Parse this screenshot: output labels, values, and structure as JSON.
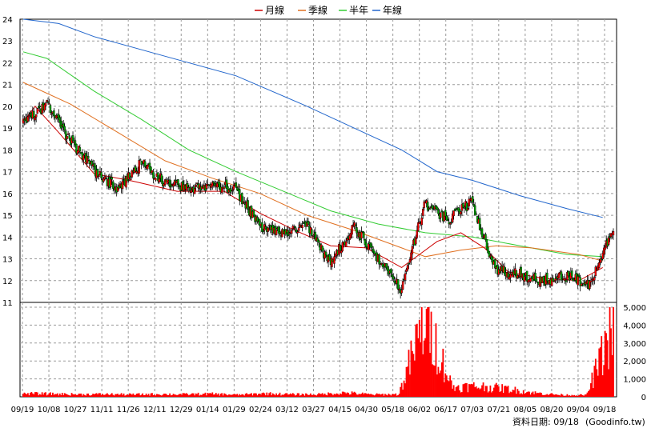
{
  "chart_data": {
    "type": "candlestick",
    "legend": [
      {
        "label": "月線",
        "color": "#cc0000"
      },
      {
        "label": "季線",
        "color": "#e07020"
      },
      {
        "label": "半年",
        "color": "#33cc33"
      },
      {
        "label": "年線",
        "color": "#2266cc"
      }
    ],
    "legend_position": "top-center",
    "grid": true,
    "price_axis": {
      "min": 11,
      "max": 24,
      "ticks": [
        11,
        12,
        13,
        14,
        15,
        16,
        17,
        18,
        19,
        20,
        21,
        22,
        23,
        24
      ]
    },
    "volume_axis": {
      "max": 5000,
      "ticks": [
        0,
        1000,
        2000,
        3000,
        4000,
        5000
      ],
      "tick_labels": [
        "0",
        "1,000",
        "2,000",
        "3,000",
        "4,000",
        "5,000"
      ]
    },
    "x_labels": [
      "09/19",
      "10/08",
      "10/27",
      "11/11",
      "11/26",
      "12/11",
      "12/29",
      "01/14",
      "01/29",
      "02/24",
      "03/12",
      "03/27",
      "04/15",
      "04/30",
      "05/18",
      "06/02",
      "06/17",
      "07/03",
      "07/21",
      "08/05",
      "08/20",
      "09/04",
      "09/18"
    ],
    "price_anchors": [
      19.3,
      20.1,
      18.4,
      17.1,
      16.2,
      17.4,
      16.5,
      16.2,
      16.4,
      16.2,
      14.5,
      14.2,
      14.5,
      12.8,
      14.5,
      13.1,
      11.6,
      15.5,
      14.8,
      15.6,
      12.5,
      12.3,
      12.0,
      12.2,
      11.8,
      14.5
    ],
    "volume_anchors": [
      200,
      180,
      150,
      160,
      140,
      160,
      150,
      180,
      120,
      200,
      150,
      150,
      250,
      140,
      150,
      4900,
      600,
      650,
      500,
      250,
      120,
      100,
      4400
    ],
    "ma_month": [
      [
        0,
        19.3
      ],
      [
        10,
        20.0
      ],
      [
        30,
        18.8
      ],
      [
        60,
        16.9
      ],
      [
        90,
        16.6
      ],
      [
        130,
        16.1
      ],
      [
        170,
        16.1
      ],
      [
        200,
        15.1
      ],
      [
        230,
        14.3
      ],
      [
        260,
        13.6
      ],
      [
        290,
        13.5
      ],
      [
        320,
        12.6
      ],
      [
        350,
        13.8
      ],
      [
        370,
        14.2
      ],
      [
        390,
        13.5
      ],
      [
        410,
        12.4
      ],
      [
        440,
        12.1
      ],
      [
        470,
        12.0
      ],
      [
        490,
        12.6
      ]
    ],
    "ma_quarter": [
      [
        0,
        21.1
      ],
      [
        40,
        20.1
      ],
      [
        80,
        18.8
      ],
      [
        120,
        17.5
      ],
      [
        160,
        16.7
      ],
      [
        200,
        16.0
      ],
      [
        240,
        15.0
      ],
      [
        280,
        14.3
      ],
      [
        320,
        13.5
      ],
      [
        340,
        13.1
      ],
      [
        370,
        13.4
      ],
      [
        400,
        13.6
      ],
      [
        430,
        13.5
      ],
      [
        470,
        13.2
      ],
      [
        490,
        12.9
      ]
    ],
    "ma_half": [
      [
        0,
        22.5
      ],
      [
        20,
        22.2
      ],
      [
        60,
        20.7
      ],
      [
        100,
        19.4
      ],
      [
        140,
        18.0
      ],
      [
        180,
        17.0
      ],
      [
        220,
        16.1
      ],
      [
        260,
        15.2
      ],
      [
        300,
        14.6
      ],
      [
        340,
        14.2
      ],
      [
        380,
        14.0
      ],
      [
        420,
        13.6
      ],
      [
        460,
        13.2
      ],
      [
        490,
        13.1
      ]
    ],
    "ma_year": [
      [
        0,
        24.0
      ],
      [
        30,
        23.8
      ],
      [
        60,
        23.2
      ],
      [
        120,
        22.3
      ],
      [
        180,
        21.4
      ],
      [
        240,
        20.0
      ],
      [
        280,
        19.0
      ],
      [
        320,
        18.0
      ],
      [
        350,
        17.0
      ],
      [
        380,
        16.6
      ],
      [
        420,
        15.9
      ],
      [
        460,
        15.3
      ],
      [
        490,
        14.9
      ]
    ]
  },
  "footer": {
    "date_label": "資料日期: 09/18",
    "source": "(Goodinfo.tw)"
  }
}
